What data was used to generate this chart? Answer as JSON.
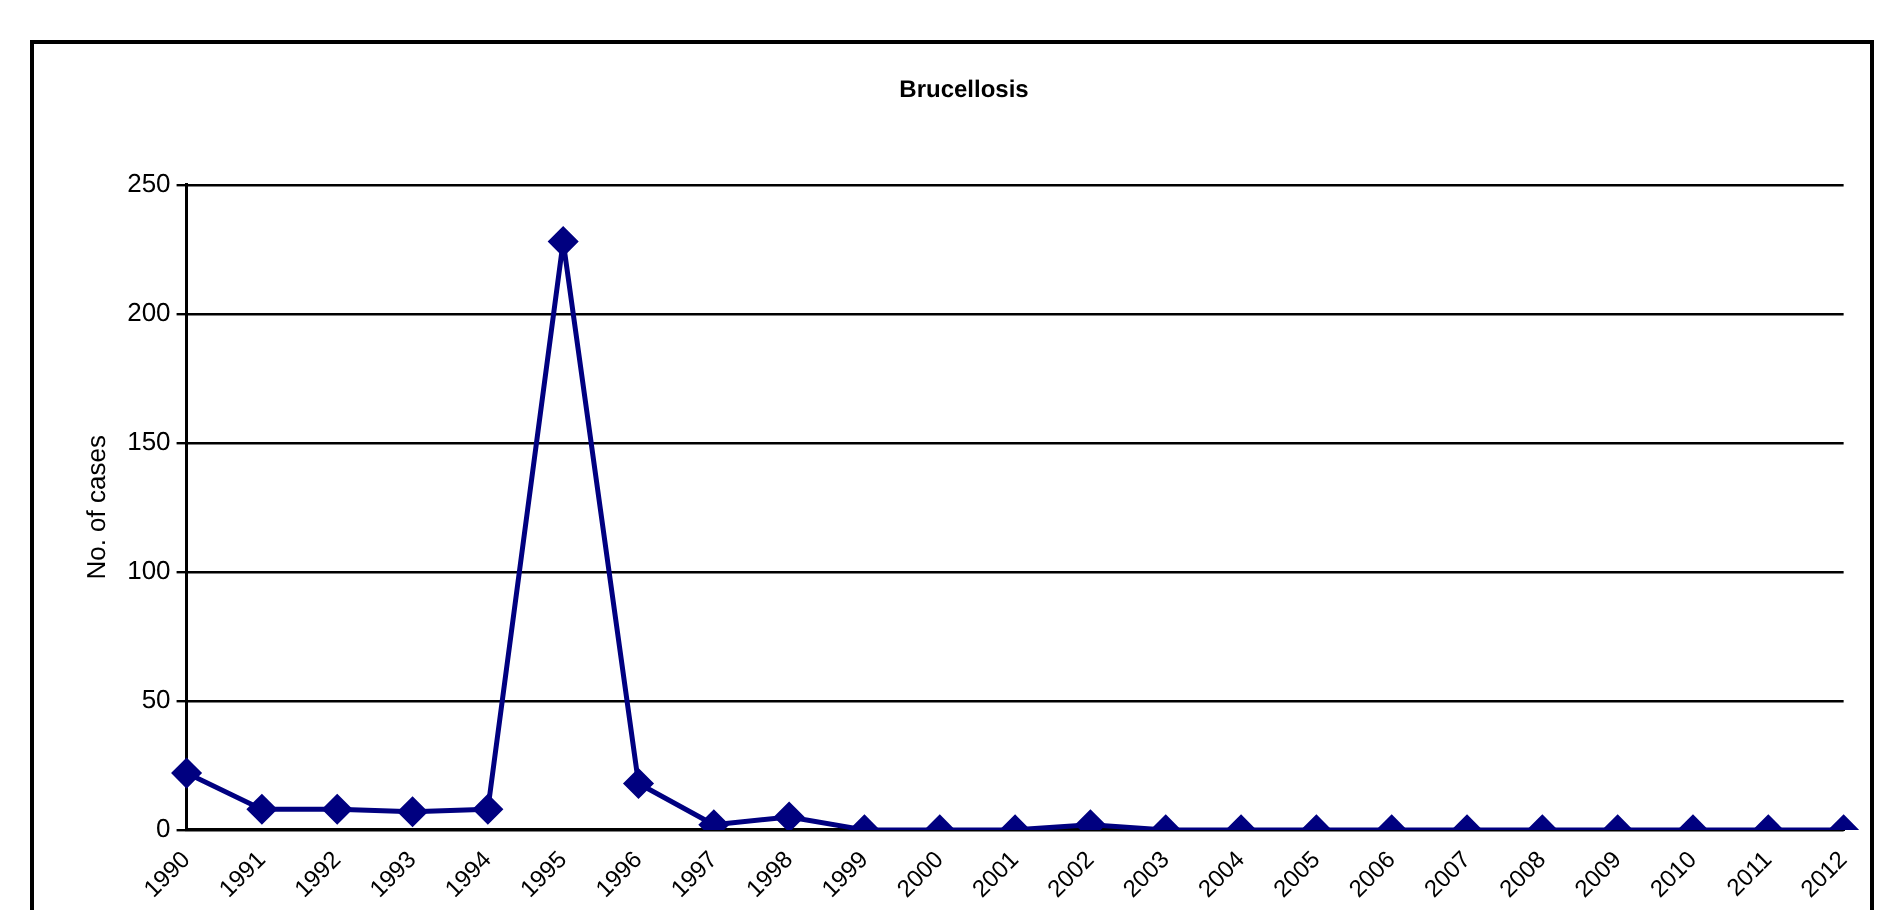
{
  "chart_data": {
    "type": "line",
    "title": "Brucellosis",
    "ylabel": "No. of cases",
    "categories": [
      "1990",
      "1991",
      "1992",
      "1993",
      "1994",
      "1995",
      "1996",
      "1997",
      "1998",
      "1999",
      "2000",
      "2001",
      "2002",
      "2003",
      "2004",
      "2005",
      "2006",
      "2007",
      "2008",
      "2009",
      "2010",
      "2011",
      "2012"
    ],
    "series": [
      {
        "color": "#000080",
        "values": [
          22,
          8,
          8,
          7,
          8,
          228,
          18,
          2,
          5,
          0,
          0,
          0,
          2,
          0,
          0,
          0,
          0,
          0,
          0,
          0,
          0,
          0,
          0
        ]
      }
    ],
    "ylim": [
      0,
      250
    ],
    "yticks": [
      0,
      50,
      100,
      150,
      200,
      250
    ],
    "grid": "y",
    "legend": false,
    "marker": "diamond",
    "line_style": "solid"
  }
}
